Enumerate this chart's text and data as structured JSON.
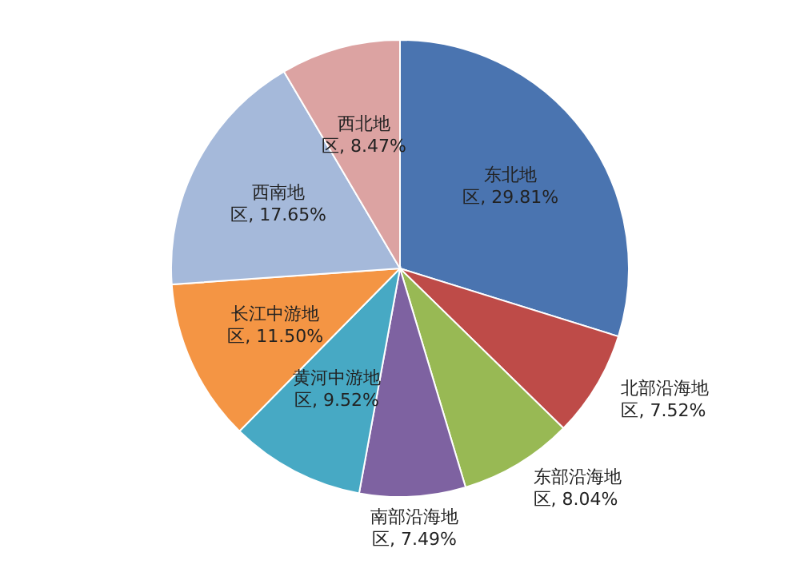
{
  "chart_data": {
    "type": "pie",
    "categories": [
      "东北地区",
      "北部沿海地区",
      "东部沿海地区",
      "南部沿海地区",
      "黄河中游地区",
      "长江中游地区",
      "西南地区",
      "西北地区"
    ],
    "values": [
      29.81,
      7.52,
      8.04,
      7.49,
      9.52,
      11.5,
      17.65,
      8.47
    ],
    "colors": [
      "#4a74b0",
      "#be4b48",
      "#98b954",
      "#7e62a1",
      "#47a9c4",
      "#f49544",
      "#a5b9da",
      "#dca3a2"
    ],
    "value_labels": [
      "29.81%",
      "7.52%",
      "8.04%",
      "7.49%",
      "9.52%",
      "11.50%",
      "17.65%",
      "8.47%"
    ]
  }
}
